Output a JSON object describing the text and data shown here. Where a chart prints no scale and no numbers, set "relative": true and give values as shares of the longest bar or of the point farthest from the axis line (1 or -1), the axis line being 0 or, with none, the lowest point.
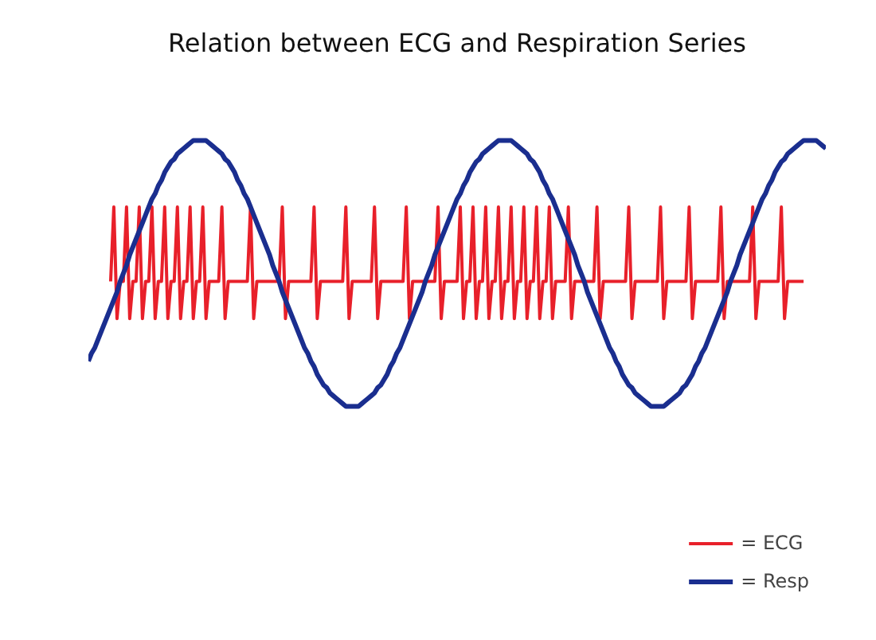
{
  "chart_data": {
    "type": "line",
    "title": "Relation between ECG and Respiration Series",
    "relative": true,
    "tick_labels": false,
    "grid": false,
    "legend": "bottom right",
    "line_style": "solid",
    "marker": "none",
    "categories": [
      null,
      null,
      null,
      null,
      null,
      null,
      null,
      null,
      null,
      null,
      null,
      null,
      null,
      null,
      null,
      null,
      null,
      null,
      null,
      null,
      null,
      null,
      null,
      null,
      null,
      null,
      null,
      null,
      null,
      null,
      null,
      null,
      null,
      null,
      null,
      null,
      null,
      null,
      null,
      null,
      null,
      null,
      null,
      null,
      null,
      null,
      null,
      null,
      null,
      null,
      null,
      null,
      null,
      null,
      null,
      null,
      null,
      null,
      null,
      null,
      null,
      null,
      null,
      null,
      null,
      null,
      null,
      null,
      null,
      null,
      null,
      null,
      null,
      null,
      null,
      null,
      null,
      null,
      null,
      null,
      null,
      null,
      null,
      null,
      null,
      null,
      null,
      null,
      null,
      null,
      null,
      null,
      null,
      null,
      null,
      null,
      null,
      null,
      null,
      null,
      null,
      null,
      null,
      null,
      null,
      null,
      null,
      null,
      null,
      null,
      null,
      null,
      null,
      null,
      null,
      null,
      null,
      null,
      null,
      null,
      null,
      null,
      null,
      null,
      null,
      null,
      null,
      null,
      null,
      null,
      null,
      null,
      null,
      null,
      null,
      null,
      null,
      null,
      null,
      null,
      null,
      null,
      null,
      null,
      null,
      null,
      null,
      null,
      null,
      null,
      null,
      null,
      null,
      null,
      null,
      null,
      null,
      null,
      null,
      null,
      null,
      null,
      null,
      null,
      null,
      null,
      null,
      null,
      null,
      null,
      null,
      null,
      null,
      null,
      null,
      null,
      null,
      null,
      null,
      null,
      null,
      null,
      null,
      null,
      null,
      null,
      null,
      null,
      null,
      null,
      null,
      null,
      null,
      null,
      null,
      null,
      null,
      null,
      null,
      null,
      null,
      null,
      null,
      null,
      null,
      null,
      null,
      null,
      null,
      null,
      null,
      null,
      null,
      null,
      null,
      null,
      null,
      null,
      null,
      null,
      null,
      null,
      null,
      null,
      null,
      null,
      null,
      null,
      null,
      null,
      null,
      null,
      null
    ],
    "series": [
      {
        "name": "= ECG",
        "color": "#e8202a",
        "values": [
          null,
          null,
          null,
          null,
          null,
          null,
          null,
          0.47,
          0.75,
          0.33,
          0.47,
          0.47,
          0.75,
          0.33,
          0.47,
          0.47,
          0.75,
          0.33,
          0.47,
          0.47,
          0.75,
          0.33,
          0.47,
          0.47,
          0.75,
          0.33,
          0.47,
          0.47,
          0.75,
          0.33,
          0.47,
          0.47,
          0.75,
          0.33,
          0.47,
          0.47,
          0.75,
          0.33,
          0.47,
          0.47,
          0.47,
          0.47,
          0.75,
          0.33,
          0.47,
          0.47,
          0.47,
          0.47,
          0.47,
          0.47,
          0.47,
          0.75,
          0.33,
          0.47,
          0.47,
          0.47,
          0.47,
          0.47,
          0.47,
          0.47,
          0.47,
          0.75,
          0.33,
          0.47,
          0.47,
          0.47,
          0.47,
          0.47,
          0.47,
          0.47,
          0.47,
          0.75,
          0.33,
          0.47,
          0.47,
          0.47,
          0.47,
          0.47,
          0.47,
          0.47,
          0.47,
          0.75,
          0.33,
          0.47,
          0.47,
          0.47,
          0.47,
          0.47,
          0.47,
          0.47,
          0.75,
          0.33,
          0.47,
          0.47,
          0.47,
          0.47,
          0.47,
          0.47,
          0.47,
          0.47,
          0.75,
          0.33,
          0.47,
          0.47,
          0.47,
          0.47,
          0.47,
          0.47,
          0.47,
          0.47,
          0.75,
          0.33,
          0.47,
          0.47,
          0.47,
          0.47,
          0.47,
          0.75,
          0.33,
          0.47,
          0.47,
          0.75,
          0.33,
          0.47,
          0.47,
          0.75,
          0.33,
          0.47,
          0.47,
          0.75,
          0.33,
          0.47,
          0.47,
          0.75,
          0.33,
          0.47,
          0.47,
          0.75,
          0.33,
          0.47,
          0.47,
          0.75,
          0.33,
          0.47,
          0.47,
          0.75,
          0.33,
          0.47,
          0.47,
          0.47,
          0.47,
          0.75,
          0.33,
          0.47,
          0.47,
          0.47,
          0.47,
          0.47,
          0.47,
          0.47,
          0.75,
          0.33,
          0.47,
          0.47,
          0.47,
          0.47,
          0.47,
          0.47,
          0.47,
          0.47,
          0.75,
          0.33,
          0.47,
          0.47,
          0.47,
          0.47,
          0.47,
          0.47,
          0.47,
          0.47,
          0.75,
          0.33,
          0.47,
          0.47,
          0.47,
          0.47,
          0.47,
          0.47,
          0.47,
          0.75,
          0.33,
          0.47,
          0.47,
          0.47,
          0.47,
          0.47,
          0.47,
          0.47,
          0.47,
          0.75,
          0.33,
          0.47,
          0.47,
          0.47,
          0.47,
          0.47,
          0.47,
          0.47,
          0.47,
          0.75,
          0.33,
          0.47,
          0.47,
          0.47,
          0.47,
          0.47,
          0.47,
          0.47,
          0.75,
          0.33,
          0.47,
          0.47,
          0.47,
          0.47,
          0.47,
          0.47,
          null,
          null,
          null,
          null,
          null,
          null,
          null
        ]
      },
      {
        "name": "= Resp",
        "color": "#1a2e8f",
        "values": [
          0.17,
          0.2,
          0.22,
          0.25,
          0.28,
          0.31,
          0.34,
          0.37,
          0.4,
          0.43,
          0.47,
          0.5,
          0.53,
          0.57,
          0.6,
          0.63,
          0.66,
          0.69,
          0.72,
          0.75,
          0.78,
          0.8,
          0.83,
          0.85,
          0.88,
          0.9,
          0.92,
          0.93,
          0.95,
          0.96,
          0.97,
          0.98,
          0.99,
          1,
          1,
          1,
          1,
          1,
          0.99,
          0.98,
          0.97,
          0.96,
          0.95,
          0.93,
          0.92,
          0.9,
          0.88,
          0.85,
          0.83,
          0.8,
          0.78,
          0.75,
          0.72,
          0.69,
          0.66,
          0.63,
          0.6,
          0.57,
          0.53,
          0.5,
          0.47,
          0.43,
          0.4,
          0.37,
          0.34,
          0.31,
          0.28,
          0.25,
          0.22,
          0.2,
          0.17,
          0.15,
          0.12,
          0.1,
          0.08,
          0.07,
          0.05,
          0.04,
          0.03,
          0.02,
          0.01,
          0,
          0,
          0,
          0,
          0,
          0.01,
          0.02,
          0.03,
          0.04,
          0.05,
          0.07,
          0.08,
          0.1,
          0.12,
          0.15,
          0.17,
          0.2,
          0.22,
          0.25,
          0.28,
          0.31,
          0.34,
          0.37,
          0.4,
          0.43,
          0.47,
          0.5,
          0.53,
          0.57,
          0.6,
          0.63,
          0.66,
          0.69,
          0.72,
          0.75,
          0.78,
          0.8,
          0.83,
          0.85,
          0.88,
          0.9,
          0.92,
          0.93,
          0.95,
          0.96,
          0.97,
          0.98,
          0.99,
          1,
          1,
          1,
          1,
          1,
          0.99,
          0.98,
          0.97,
          0.96,
          0.95,
          0.93,
          0.92,
          0.9,
          0.88,
          0.85,
          0.83,
          0.8,
          0.78,
          0.75,
          0.72,
          0.69,
          0.66,
          0.63,
          0.6,
          0.57,
          0.53,
          0.5,
          0.47,
          0.43,
          0.4,
          0.37,
          0.34,
          0.31,
          0.28,
          0.25,
          0.22,
          0.2,
          0.17,
          0.15,
          0.12,
          0.1,
          0.08,
          0.07,
          0.05,
          0.04,
          0.03,
          0.02,
          0.01,
          0,
          0,
          0,
          0,
          0,
          0.01,
          0.02,
          0.03,
          0.04,
          0.05,
          0.07,
          0.08,
          0.1,
          0.12,
          0.15,
          0.17,
          0.2,
          0.22,
          0.25,
          0.28,
          0.31,
          0.34,
          0.37,
          0.4,
          0.43,
          0.47,
          0.5,
          0.53,
          0.57,
          0.6,
          0.63,
          0.66,
          0.69,
          0.72,
          0.75,
          0.78,
          0.8,
          0.83,
          0.85,
          0.88,
          0.9,
          0.92,
          0.93,
          0.95,
          0.96,
          0.97,
          0.98,
          0.99,
          1,
          1,
          1,
          1,
          1,
          0.99,
          0.98,
          0.97
        ]
      }
    ]
  }
}
